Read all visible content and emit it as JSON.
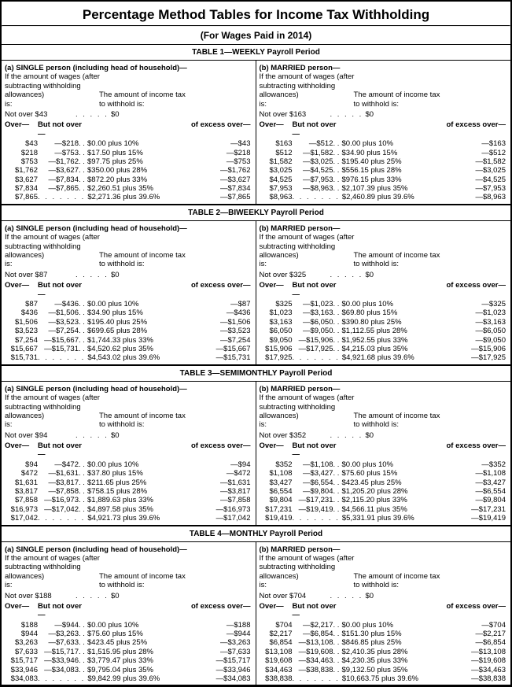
{
  "title": "Percentage Method Tables for Income Tax Withholding",
  "subtitle": "(For Wages Paid in 2014)",
  "head": {
    "if_amount": "If the amount of wages (after",
    "subtracting": "subtracting withholding",
    "allow": "allowances)",
    "is": "is:",
    "tax1": "The amount of income tax",
    "tax2": "to withhold is:",
    "over": "Over—",
    "bno": "But not over—",
    "excess": "of excess over—"
  },
  "tbl": [
    {
      "hdr": "TABLE 1—WEEKLY Payroll Period",
      "s": {
        "t": "(a) SINGLE person (including head of household)—",
        "no": "Not over $43",
        "zero": "$0",
        "r": [
          [
            "$43",
            "—$218",
            "$0.00 plus 10%",
            "—$43"
          ],
          [
            "$218",
            "—$753",
            "$17.50 plus 15%",
            "—$218"
          ],
          [
            "$753",
            "—$1,762",
            "$97.75 plus 25%",
            "—$753"
          ],
          [
            "$1,762",
            "—$3,627",
            "$350.00 plus 28%",
            "—$1,762"
          ],
          [
            "$3,627",
            "—$7,834",
            "$872.20 plus 33%",
            "—$3,627"
          ],
          [
            "$7,834",
            "—$7,865",
            "$2,260.51 plus 35%",
            "—$7,834"
          ]
        ],
        "last": [
          "$7,865",
          "$2,271.36 plus 39.6%",
          "—$7,865"
        ]
      },
      "m": {
        "t": "(b) MARRIED person—",
        "no": "Not over $163",
        "zero": "$0",
        "r": [
          [
            "$163",
            "—$512",
            "$0.00 plus 10%",
            "—$163"
          ],
          [
            "$512",
            "—$1,582",
            "$34.90 plus 15%",
            "—$512"
          ],
          [
            "$1,582",
            "—$3,025",
            "$195.40 plus 25%",
            "—$1,582"
          ],
          [
            "$3,025",
            "—$4,525",
            "$556.15 plus 28%",
            "—$3,025"
          ],
          [
            "$4,525",
            "—$7,953",
            "$976.15 plus 33%",
            "—$4,525"
          ],
          [
            "$7,953",
            "—$8,963",
            "$2,107.39 plus 35%",
            "—$7,953"
          ]
        ],
        "last": [
          "$8,963",
          "$2,460.89 plus 39.6%",
          "—$8,963"
        ]
      }
    },
    {
      "hdr": "TABLE 2—BIWEEKLY Payroll Period",
      "s": {
        "t": "(a) SINGLE person (including head of household)—",
        "no": "Not over $87",
        "zero": "$0",
        "r": [
          [
            "$87",
            "—$436",
            "$0.00 plus 10%",
            "—$87"
          ],
          [
            "$436",
            "—$1,506",
            "$34.90 plus 15%",
            "—$436"
          ],
          [
            "$1,506",
            "—$3,523",
            "$195.40 plus 25%",
            "—$1,506"
          ],
          [
            "$3,523",
            "—$7,254",
            "$699.65 plus 28%",
            "—$3,523"
          ],
          [
            "$7,254",
            "—$15,667",
            "$1,744.33 plus 33%",
            "—$7,254"
          ],
          [
            "$15,667",
            "—$15,731",
            "$4,520.62 plus 35%",
            "—$15,667"
          ]
        ],
        "last": [
          "$15,731",
          "$4,543.02 plus 39.6%",
          "—$15,731"
        ]
      },
      "m": {
        "t": "(b) MARRIED person—",
        "no": "Not over $325",
        "zero": "$0",
        "r": [
          [
            "$325",
            "—$1,023",
            "$0.00 plus 10%",
            "—$325"
          ],
          [
            "$1,023",
            "—$3,163",
            "$69.80 plus 15%",
            "—$1,023"
          ],
          [
            "$3,163",
            "—$6,050",
            "$390.80 plus 25%",
            "—$3,163"
          ],
          [
            "$6,050",
            "—$9,050",
            "$1,112.55 plus 28%",
            "—$6,050"
          ],
          [
            "$9,050",
            "—$15,906",
            "$1,952.55 plus 33%",
            "—$9,050"
          ],
          [
            "$15,906",
            "—$17,925",
            "$4,215.03 plus 35%",
            "—$15,906"
          ]
        ],
        "last": [
          "$17,925",
          "$4,921.68 plus 39.6%",
          "—$17,925"
        ]
      }
    },
    {
      "hdr": "TABLE 3—SEMIMONTHLY Payroll Period",
      "s": {
        "t": "(a) SINGLE person (including head of household)—",
        "no": "Not over $94",
        "zero": "$0",
        "r": [
          [
            "$94",
            "—$472",
            "$0.00 plus 10%",
            "—$94"
          ],
          [
            "$472",
            "—$1,631",
            "$37.80 plus 15%",
            "—$472"
          ],
          [
            "$1,631",
            "—$3,817",
            "$211.65 plus 25%",
            "—$1,631"
          ],
          [
            "$3,817",
            "—$7,858",
            "$758.15 plus 28%",
            "—$3,817"
          ],
          [
            "$7,858",
            "—$16,973",
            "$1,889.63 plus 33%",
            "—$7,858"
          ],
          [
            "$16,973",
            "—$17,042",
            "$4,897.58 plus 35%",
            "—$16,973"
          ]
        ],
        "last": [
          "$17,042",
          "$4,921.73 plus 39.6%",
          "—$17,042"
        ]
      },
      "m": {
        "t": "(b) MARRIED person—",
        "no": "Not over $352",
        "zero": "$0",
        "r": [
          [
            "$352",
            "—$1,108",
            "$0.00 plus 10%",
            "—$352"
          ],
          [
            "$1,108",
            "—$3,427",
            "$75.60 plus 15%",
            "—$1,108"
          ],
          [
            "$3,427",
            "—$6,554",
            "$423.45 plus 25%",
            "—$3,427"
          ],
          [
            "$6,554",
            "—$9,804",
            "$1,205.20 plus 28%",
            "—$6,554"
          ],
          [
            "$9,804",
            "—$17,231",
            "$2,115.20 plus 33%",
            "—$9,804"
          ],
          [
            "$17,231",
            "—$19,419",
            "$4,566.11 plus 35%",
            "—$17,231"
          ]
        ],
        "last": [
          "$19,419",
          "$5,331.91 plus 39.6%",
          "—$19,419"
        ]
      }
    },
    {
      "hdr": "TABLE 4—MONTHLY Payroll Period",
      "s": {
        "t": "(a) SINGLE person (including head of household)—",
        "no": "Not over $188",
        "zero": "$0",
        "r": [
          [
            "$188",
            "—$944",
            "$0.00 plus 10%",
            "—$188"
          ],
          [
            "$944",
            "—$3,263",
            "$75.60 plus 15%",
            "—$944"
          ],
          [
            "$3,263",
            "—$7,633",
            "$423.45 plus 25%",
            "—$3,263"
          ],
          [
            "$7,633",
            "—$15,717",
            "$1,515.95 plus 28%",
            "—$7,633"
          ],
          [
            "$15,717",
            "—$33,946",
            "$3,779.47 plus 33%",
            "—$15,717"
          ],
          [
            "$33,946",
            "—$34,083",
            "$9,795.04 plus 35%",
            "—$33,946"
          ]
        ],
        "last": [
          "$34,083",
          "$9,842.99 plus 39.6%",
          "—$34,083"
        ]
      },
      "m": {
        "t": "(b) MARRIED person—",
        "no": "Not over $704",
        "zero": "$0",
        "r": [
          [
            "$704",
            "—$2,217",
            "$0.00 plus 10%",
            "—$704"
          ],
          [
            "$2,217",
            "—$6,854",
            "$151.30 plus 15%",
            "—$2,217"
          ],
          [
            "$6,854",
            "—$13,108",
            "$846.85 plus 25%",
            "—$6,854"
          ],
          [
            "$13,108",
            "—$19,608",
            "$2,410.35 plus 28%",
            "—$13,108"
          ],
          [
            "$19,608",
            "—$34,463",
            "$4,230.35 plus 33%",
            "—$19,608"
          ],
          [
            "$34,463",
            "—$38,838",
            "$9,132.50 plus 35%",
            "—$34,463"
          ]
        ],
        "last": [
          "$38,838",
          "$10,663.75 plus 39.6%",
          "—$38,838"
        ]
      }
    }
  ]
}
